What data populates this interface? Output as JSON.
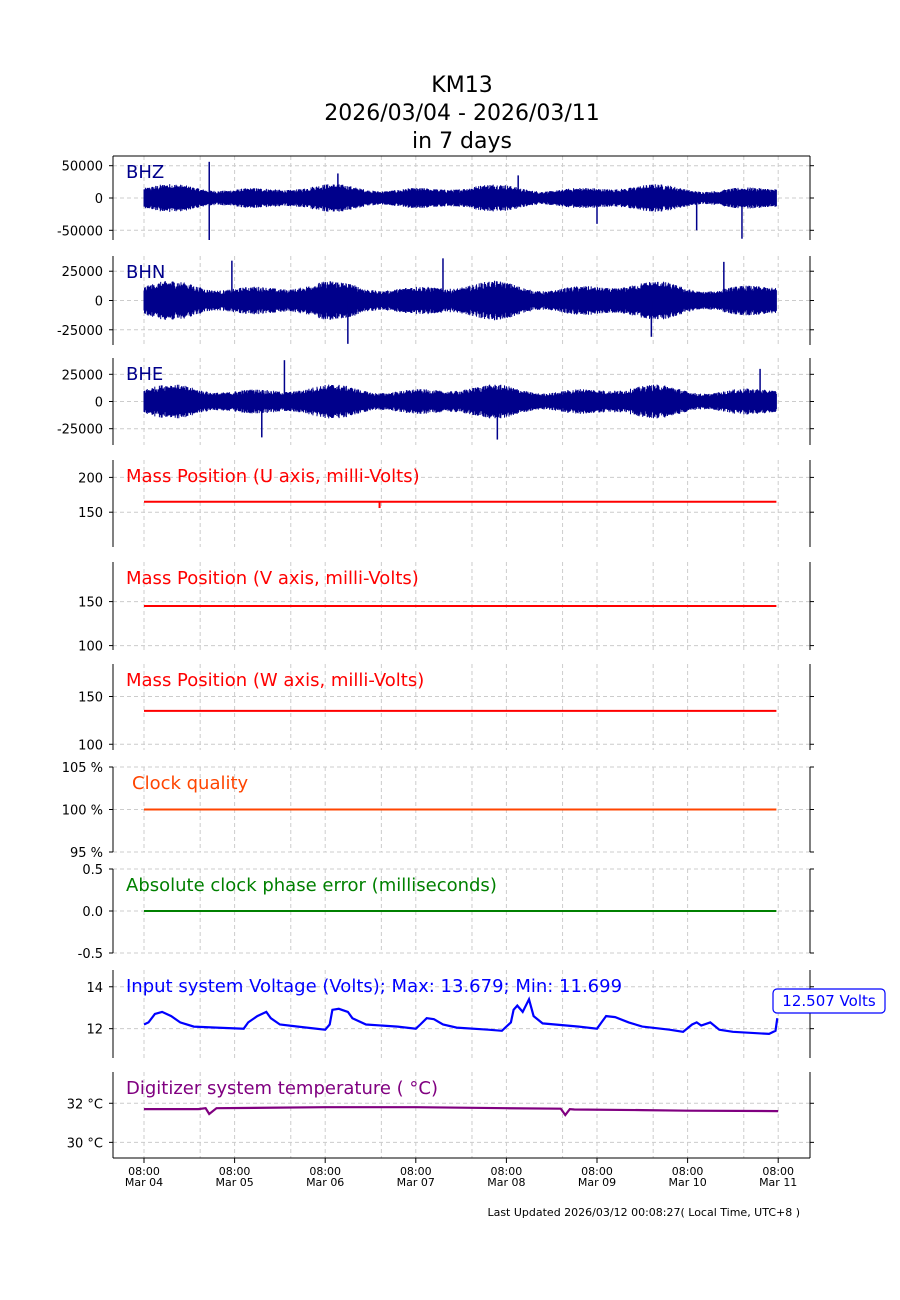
{
  "title": {
    "station": "KM13",
    "date_range": "2026/03/04 - 2026/03/11",
    "duration": "in 7 days"
  },
  "footer": "Last Updated 2026/03/12 00:08:27( Local Time, UTC+8 )",
  "voltage_badge": "12.507 Volts",
  "chart_data": [
    {
      "type": "line",
      "title": "BHZ",
      "title_color": "#00008b",
      "line_color": "#00008b",
      "series_kind": "waveform",
      "ylim": [
        -65000,
        65000
      ],
      "yticks": [
        50000,
        0,
        -50000
      ],
      "ytick_labels": [
        "50000",
        "0",
        "-50000"
      ],
      "amplitude": 22000,
      "spikes": [
        [
          0.72,
          56000
        ],
        [
          0.72,
          -65000
        ],
        [
          2.14,
          38000
        ],
        [
          4.13,
          35000
        ],
        [
          5.0,
          -40000
        ],
        [
          6.1,
          -50000
        ],
        [
          6.6,
          -63000
        ]
      ]
    },
    {
      "type": "line",
      "title": "BHN",
      "title_color": "#00008b",
      "line_color": "#00008b",
      "series_kind": "waveform",
      "ylim": [
        -38000,
        38000
      ],
      "yticks": [
        25000,
        0,
        -25000
      ],
      "ytick_labels": [
        "25000",
        "0",
        "-25000"
      ],
      "amplitude": 17000,
      "spikes": [
        [
          0.97,
          34000
        ],
        [
          2.25,
          -37000
        ],
        [
          3.3,
          36000
        ],
        [
          5.6,
          -31000
        ],
        [
          6.4,
          33000
        ]
      ]
    },
    {
      "type": "line",
      "title": "BHE",
      "title_color": "#00008b",
      "line_color": "#00008b",
      "series_kind": "waveform",
      "ylim": [
        -40000,
        40000
      ],
      "yticks": [
        25000,
        0,
        -25000
      ],
      "ytick_labels": [
        "25000",
        "0",
        "-25000"
      ],
      "amplitude": 16000,
      "spikes": [
        [
          1.55,
          38000
        ],
        [
          3.9,
          -35000
        ],
        [
          1.3,
          -33000
        ],
        [
          6.8,
          30000
        ]
      ]
    },
    {
      "type": "line",
      "title": "Mass Position (U axis, milli-Volts)",
      "title_color": "#ff0000",
      "line_color": "#ff0000",
      "series_kind": "constant",
      "value": 165,
      "ylim": [
        100,
        225
      ],
      "yticks": [
        200,
        150
      ],
      "ytick_labels": [
        "200",
        "150"
      ],
      "spikes": [
        [
          2.6,
          156
        ]
      ]
    },
    {
      "type": "line",
      "title": "Mass Position (V axis, milli-Volts)",
      "title_color": "#ff0000",
      "line_color": "#ff0000",
      "series_kind": "constant",
      "value": 145,
      "ylim": [
        95,
        195
      ],
      "yticks": [
        150,
        100
      ],
      "ytick_labels": [
        "150",
        "100"
      ],
      "spikes": []
    },
    {
      "type": "line",
      "title": "Mass Position (W axis, milli-Volts)",
      "title_color": "#ff0000",
      "line_color": "#ff0000",
      "series_kind": "constant",
      "value": 135,
      "ylim": [
        94,
        184
      ],
      "yticks": [
        150,
        100
      ],
      "ytick_labels": [
        "150",
        "100"
      ],
      "spikes": []
    },
    {
      "type": "line",
      "title": "Clock quality",
      "title_color": "#ff4500",
      "line_color": "#ff4500",
      "series_kind": "constant",
      "value": 100,
      "ylim": [
        95,
        105
      ],
      "yticks": [
        105,
        100,
        95
      ],
      "ytick_labels": [
        "105 %",
        "100 %",
        "95 %"
      ],
      "spikes": []
    },
    {
      "type": "line",
      "title": "Absolute clock phase error (milliseconds)",
      "title_color": "#008000",
      "line_color": "#008000",
      "series_kind": "constant",
      "value": 0,
      "ylim": [
        -0.5,
        0.5
      ],
      "yticks": [
        0.5,
        0.0,
        -0.5
      ],
      "ytick_labels": [
        "0.5",
        "0.0",
        "-0.5"
      ],
      "spikes": []
    },
    {
      "type": "line",
      "title": "Input system Voltage (Volts);    Max: 13.679; Min: 11.699",
      "title_color": "#0000ff",
      "line_color": "#0000ff",
      "series_kind": "series",
      "ylim": [
        10.6,
        14.8
      ],
      "yticks": [
        14,
        12
      ],
      "ytick_labels": [
        "14",
        "12"
      ],
      "x": [
        0.0,
        0.05,
        0.12,
        0.2,
        0.3,
        0.4,
        0.55,
        0.8,
        1.1,
        1.15,
        1.25,
        1.35,
        1.4,
        1.5,
        1.7,
        2.0,
        2.05,
        2.08,
        2.15,
        2.25,
        2.3,
        2.45,
        2.8,
        3.0,
        3.05,
        3.12,
        3.2,
        3.3,
        3.45,
        3.8,
        3.95,
        4.05,
        4.08,
        4.12,
        4.18,
        4.25,
        4.3,
        4.4,
        4.8,
        5.0,
        5.05,
        5.1,
        5.2,
        5.35,
        5.5,
        5.8,
        5.95,
        6.05,
        6.1,
        6.15,
        6.25,
        6.35,
        6.5,
        6.9,
        6.97,
        6.99
      ],
      "y": [
        12.2,
        12.3,
        12.7,
        12.8,
        12.6,
        12.3,
        12.1,
        12.05,
        12.0,
        12.3,
        12.6,
        12.8,
        12.5,
        12.2,
        12.1,
        11.95,
        12.2,
        12.9,
        12.95,
        12.8,
        12.5,
        12.2,
        12.1,
        12.0,
        12.2,
        12.5,
        12.45,
        12.2,
        12.05,
        11.95,
        11.9,
        12.3,
        12.9,
        13.1,
        12.8,
        13.4,
        12.6,
        12.25,
        12.1,
        12.0,
        12.3,
        12.6,
        12.55,
        12.3,
        12.1,
        11.95,
        11.85,
        12.2,
        12.3,
        12.15,
        12.3,
        11.95,
        11.85,
        11.75,
        11.9,
        12.5
      ]
    },
    {
      "type": "line",
      "title": "Digitizer system temperature ($^\\circ$C)",
      "title_color": "#800080",
      "line_color": "#800080",
      "series_kind": "series",
      "ylim": [
        29.2,
        33.6
      ],
      "yticks": [
        32,
        30
      ],
      "ytick_labels": [
        "32 °C",
        "30 °C"
      ],
      "x": [
        0.0,
        0.6,
        0.68,
        0.72,
        0.8,
        2.0,
        3.0,
        4.0,
        4.6,
        4.65,
        4.7,
        4.75,
        5.5,
        6.0,
        7.0
      ],
      "y": [
        31.7,
        31.7,
        31.75,
        31.45,
        31.75,
        31.8,
        31.8,
        31.75,
        31.72,
        31.4,
        31.7,
        31.68,
        31.65,
        31.62,
        31.6
      ]
    }
  ],
  "x_axis": {
    "ticks": [
      0,
      1,
      2,
      3,
      4,
      5,
      6,
      7
    ],
    "labels": [
      [
        "08:00",
        "Mar 04"
      ],
      [
        "08:00",
        "Mar 05"
      ],
      [
        "08:00",
        "Mar 06"
      ],
      [
        "08:00",
        "Mar 07"
      ],
      [
        "08:00",
        "Mar 08"
      ],
      [
        "08:00",
        "Mar 09"
      ],
      [
        "08:00",
        "Mar 10"
      ],
      [
        "08:00",
        "Mar 11"
      ]
    ],
    "minor_ticks": [
      0.62,
      1.62,
      2.62,
      3.62,
      4.62,
      5.62,
      6.62
    ]
  }
}
